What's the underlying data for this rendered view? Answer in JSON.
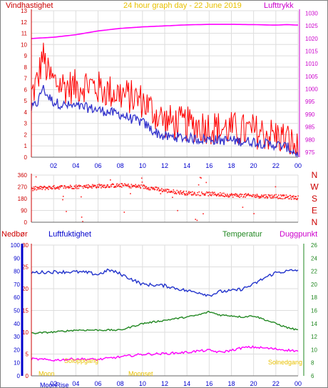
{
  "header": {
    "left_label": "Vindhastighet",
    "title": "24 hour graph day - 22 June 2019",
    "right_label": "Lufttrykk"
  },
  "bottom_header": {
    "precip_label": "Nedbør",
    "humidity_label": "Luftfuktighet",
    "temperature_label": "Temperatur",
    "dewpoint_label": "Duggpunkt"
  },
  "bottom_annotations": {
    "sunrise": "Soloppgang",
    "sunset": "Solnedgang",
    "moonrise": "MoonRise",
    "moonset": "Moonset",
    "moon_label": "Moon"
  },
  "x_ticks": [
    "02",
    "04",
    "06",
    "08",
    "10",
    "12",
    "14",
    "16",
    "18",
    "20",
    "22",
    "00"
  ],
  "colors": {
    "wind_gust": "#ff0000",
    "wind_avg": "#3333cc",
    "pressure": "#ff00ff",
    "direction": "#ff2020",
    "humidity": "#2233cc",
    "temperature": "#228822",
    "dewpoint": "#ff00ff",
    "left_axis_title": "#cc0000",
    "right_axis_title": "#cc00cc",
    "precip_axis": "#0000cc",
    "title": "#e8c000",
    "grid": "#dddddd"
  },
  "chart_data": [
    {
      "type": "line",
      "name": "wind_and_pressure",
      "x_range_hours": [
        0,
        24
      ],
      "left_axis": {
        "label": "Vindhastighet",
        "ticks": [
          0,
          1,
          2,
          3,
          4,
          5,
          6,
          7,
          8,
          9,
          10,
          11,
          12,
          13
        ],
        "range": [
          0,
          13
        ]
      },
      "right_axis": {
        "label": "Lufttrykk",
        "ticks": [
          975,
          980,
          985,
          990,
          995,
          1000,
          1005,
          1010,
          1015,
          1020,
          1025,
          1030
        ],
        "range": [
          973,
          1031
        ]
      },
      "series": [
        {
          "name": "gust",
          "axis": "left",
          "anchors": [
            [
              0,
              5.2
            ],
            [
              0.6,
              6.5
            ],
            [
              1.0,
              8.8
            ],
            [
              1.5,
              7.0
            ],
            [
              2,
              6.4
            ],
            [
              3,
              6.0
            ],
            [
              4,
              5.9
            ],
            [
              5,
              6.2
            ],
            [
              6,
              5.8
            ],
            [
              7,
              5.5
            ],
            [
              8,
              5.3
            ],
            [
              9,
              5.0
            ],
            [
              10,
              4.7
            ],
            [
              11,
              3.7
            ],
            [
              12,
              2.9
            ],
            [
              13,
              2.7
            ],
            [
              14,
              2.6
            ],
            [
              15,
              2.5
            ],
            [
              16,
              2.4
            ],
            [
              17,
              2.2
            ],
            [
              18,
              2.2
            ],
            [
              19,
              2.0
            ],
            [
              20,
              2.0
            ],
            [
              21,
              1.8
            ],
            [
              22,
              1.6
            ],
            [
              23,
              1.3
            ],
            [
              23.6,
              0.7
            ],
            [
              24,
              0.3
            ]
          ]
        },
        {
          "name": "average",
          "axis": "left",
          "anchors": [
            [
              0,
              4.3
            ],
            [
              0.6,
              4.9
            ],
            [
              1.0,
              6.2
            ],
            [
              1.5,
              5.4
            ],
            [
              2,
              4.9
            ],
            [
              3,
              4.6
            ],
            [
              4,
              4.5
            ],
            [
              5,
              4.4
            ],
            [
              6,
              4.2
            ],
            [
              7,
              4.0
            ],
            [
              8,
              3.8
            ],
            [
              9,
              3.4
            ],
            [
              10,
              3.1
            ],
            [
              11,
              2.3
            ],
            [
              12,
              1.8
            ],
            [
              13,
              1.8
            ],
            [
              14,
              1.7
            ],
            [
              15,
              1.6
            ],
            [
              16,
              1.6
            ],
            [
              17,
              1.5
            ],
            [
              18,
              1.5
            ],
            [
              19,
              1.4
            ],
            [
              20,
              1.4
            ],
            [
              21,
              1.2
            ],
            [
              22,
              1.1
            ],
            [
              23,
              0.9
            ],
            [
              23.6,
              0.5
            ],
            [
              24,
              0.2
            ]
          ]
        },
        {
          "name": "pressure",
          "axis": "right",
          "anchors": [
            [
              0,
              1020.0
            ],
            [
              2,
              1020.5
            ],
            [
              4,
              1021.5
            ],
            [
              6,
              1023.0
            ],
            [
              8,
              1024.0
            ],
            [
              10,
              1024.6
            ],
            [
              12,
              1025.0
            ],
            [
              14,
              1025.4
            ],
            [
              16,
              1025.6
            ],
            [
              18,
              1025.6
            ],
            [
              20,
              1025.5
            ],
            [
              22,
              1025.3
            ],
            [
              23,
              1025.5
            ],
            [
              24,
              1025.3
            ]
          ]
        }
      ]
    },
    {
      "type": "scatter",
      "name": "wind_direction",
      "y_axis": {
        "ticks": [
          0,
          90,
          180,
          270,
          360
        ],
        "range": [
          0,
          360
        ]
      },
      "compass_labels": [
        "N",
        "W",
        "S",
        "E",
        "N"
      ],
      "anchors": [
        [
          0,
          255
        ],
        [
          2,
          265
        ],
        [
          4,
          270
        ],
        [
          6,
          275
        ],
        [
          8,
          280
        ],
        [
          10,
          270
        ],
        [
          12,
          240
        ],
        [
          14,
          220
        ],
        [
          16,
          215
        ],
        [
          18,
          205
        ],
        [
          20,
          200
        ],
        [
          22,
          195
        ],
        [
          24,
          185
        ]
      ]
    },
    {
      "type": "line",
      "name": "humidity_temperature_dewpoint",
      "precip_axis": {
        "label": "Nedbør",
        "ticks": [
          0,
          10,
          20,
          30,
          40,
          50,
          60,
          70,
          80,
          90,
          100
        ],
        "range": [
          0,
          100
        ]
      },
      "humidity_axis": {
        "label": "Luftfuktighet",
        "ticks": [
          0,
          5,
          10,
          15,
          20,
          25,
          30
        ],
        "range": [
          0,
          30
        ]
      },
      "temp_axis": {
        "label": "Temperatur",
        "ticks": [
          6,
          8,
          10,
          12,
          14,
          16,
          18,
          20,
          22,
          24,
          26
        ],
        "range": [
          6,
          26
        ]
      },
      "series": [
        {
          "name": "humidity",
          "axis": "temp",
          "anchors": [
            [
              0,
              21.8
            ],
            [
              2,
              21.9
            ],
            [
              4,
              21.9
            ],
            [
              5,
              21.8
            ],
            [
              6,
              21.5
            ],
            [
              7,
              22.2
            ],
            [
              8,
              21.6
            ],
            [
              9,
              20.8
            ],
            [
              10,
              20.0
            ],
            [
              12,
              19.8
            ],
            [
              14,
              19.0
            ],
            [
              15,
              18.8
            ],
            [
              16,
              18.3
            ],
            [
              17,
              18.9
            ],
            [
              18,
              19.0
            ],
            [
              19,
              19.3
            ],
            [
              20,
              20.0
            ],
            [
              21,
              21.0
            ],
            [
              22,
              21.8
            ],
            [
              24,
              22.2
            ]
          ]
        },
        {
          "name": "temperature",
          "axis": "temp",
          "anchors": [
            [
              0,
              12.5
            ],
            [
              2,
              12.7
            ],
            [
              4,
              13.0
            ],
            [
              6,
              13.0
            ],
            [
              8,
              13.0
            ],
            [
              10,
              14.0
            ],
            [
              12,
              14.5
            ],
            [
              14,
              15.0
            ],
            [
              15,
              15.3
            ],
            [
              16,
              15.8
            ],
            [
              17,
              15.3
            ],
            [
              18,
              15.2
            ],
            [
              19,
              15.0
            ],
            [
              20,
              15.2
            ],
            [
              21,
              14.6
            ],
            [
              22,
              14.0
            ],
            [
              23,
              13.4
            ],
            [
              24,
              13.0
            ]
          ]
        },
        {
          "name": "dewpoint",
          "axis": "temp",
          "anchors": [
            [
              0,
              8.6
            ],
            [
              2,
              8.4
            ],
            [
              4,
              8.6
            ],
            [
              6,
              8.5
            ],
            [
              8,
              8.9
            ],
            [
              10,
              9.3
            ],
            [
              12,
              9.4
            ],
            [
              14,
              9.6
            ],
            [
              15,
              9.8
            ],
            [
              16,
              9.9
            ],
            [
              17,
              9.6
            ],
            [
              18,
              9.9
            ],
            [
              19,
              10.3
            ],
            [
              20,
              10.4
            ],
            [
              22,
              10.1
            ],
            [
              24,
              9.8
            ]
          ]
        }
      ]
    }
  ]
}
